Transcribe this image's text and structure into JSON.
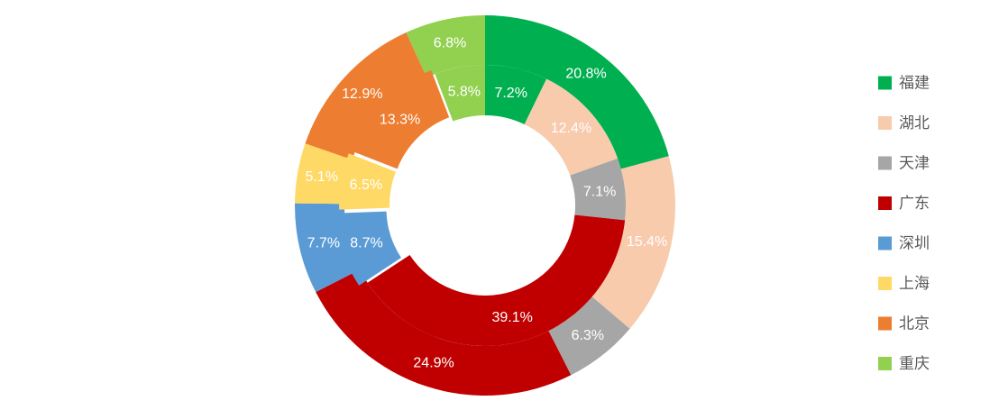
{
  "chart_data": {
    "type": "pie",
    "subtype": "double-donut",
    "title": "",
    "categories": [
      "福建",
      "湖北",
      "天津",
      "广东",
      "深圳",
      "上海",
      "北京",
      "重庆"
    ],
    "colors": [
      "#00b050",
      "#f8cbad",
      "#a6a6a6",
      "#c00000",
      "#5b9bd5",
      "#ffd966",
      "#ed7d31",
      "#92d050"
    ],
    "series": [
      {
        "ring": "outer",
        "values": [
          20.8,
          15.4,
          6.3,
          24.9,
          7.7,
          5.1,
          12.9,
          6.8
        ],
        "labels": [
          "20.8%",
          "15.4%",
          "6.3%",
          "24.9%",
          "7.7%",
          "5.1%",
          "12.9%",
          "6.8%"
        ]
      },
      {
        "ring": "inner",
        "values": [
          7.2,
          12.4,
          7.1,
          39.1,
          8.7,
          6.5,
          13.3,
          5.8
        ],
        "labels": [
          "7.2%",
          "12.4%",
          "7.1%",
          "39.1%",
          "8.7%",
          "6.5%",
          "13.3%",
          "5.8%"
        ]
      }
    ],
    "legend": {
      "position": "right",
      "items": [
        {
          "label": "福建",
          "color": "#00b050"
        },
        {
          "label": "湖北",
          "color": "#f8cbad"
        },
        {
          "label": "天津",
          "color": "#a6a6a6"
        },
        {
          "label": "广东",
          "color": "#c00000"
        },
        {
          "label": "深圳",
          "color": "#5b9bd5"
        },
        {
          "label": "上海",
          "color": "#ffd966"
        },
        {
          "label": "北京",
          "color": "#ed7d31"
        },
        {
          "label": "重庆",
          "color": "#92d050"
        }
      ]
    }
  }
}
